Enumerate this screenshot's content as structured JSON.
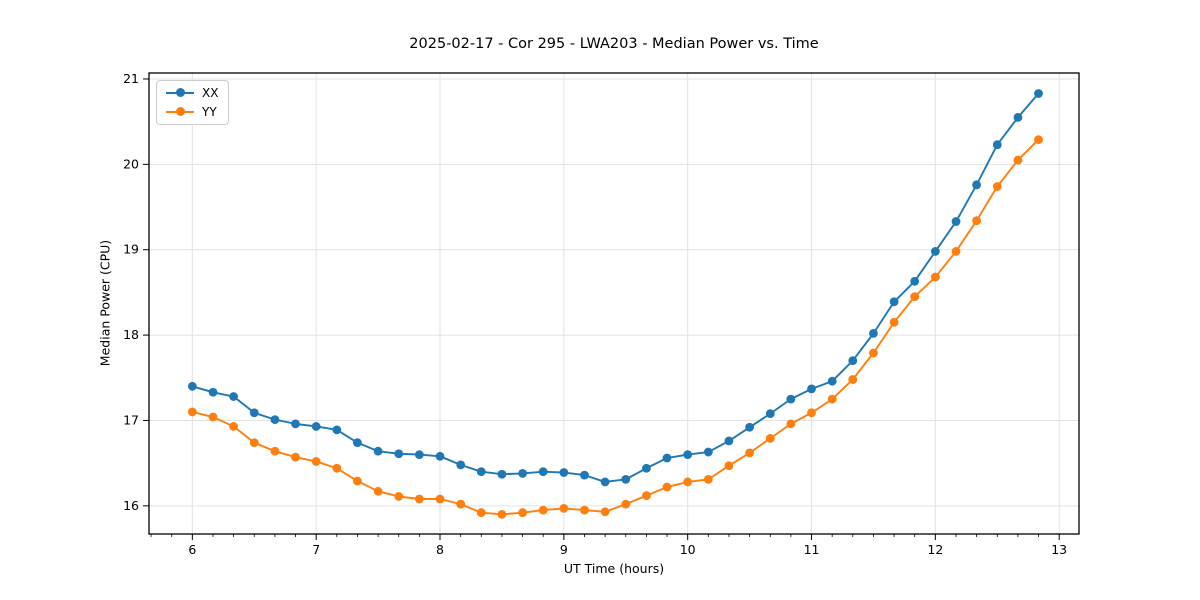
{
  "figure": {
    "title": "2025-02-17 - Cor 295 - LWA203 - Median Power vs. Time"
  },
  "chart_data": {
    "type": "line",
    "title": "2025-02-17 - Cor 295 - LWA203 - Median Power vs. Time",
    "xlabel": "UT Time (hours)",
    "ylabel": "Median Power (CPU)",
    "xlim": [
      5.65,
      13.16
    ],
    "ylim": [
      15.67,
      21.07
    ],
    "xticks": [
      6,
      7,
      8,
      9,
      10,
      11,
      12,
      13
    ],
    "yticks": [
      16,
      17,
      18,
      19,
      20,
      21
    ],
    "x_minor_divisions": 6,
    "grid": true,
    "grid_color": "#e2e2e2",
    "legend_position": "upper-left",
    "x": [
      6.0,
      6.167,
      6.333,
      6.5,
      6.667,
      6.833,
      7.0,
      7.167,
      7.333,
      7.5,
      7.667,
      7.833,
      8.0,
      8.167,
      8.333,
      8.5,
      8.667,
      8.833,
      9.0,
      9.167,
      9.333,
      9.5,
      9.667,
      9.833,
      10.0,
      10.167,
      10.333,
      10.5,
      10.667,
      10.833,
      11.0,
      11.167,
      11.333,
      11.5,
      11.667,
      11.833,
      12.0,
      12.167,
      12.333,
      12.5,
      12.667,
      12.833
    ],
    "series": [
      {
        "name": "XX",
        "color": "#1f77b4",
        "marker": "circle",
        "values": [
          17.4,
          17.33,
          17.28,
          17.09,
          17.01,
          16.96,
          16.93,
          16.89,
          16.74,
          16.64,
          16.61,
          16.6,
          16.58,
          16.48,
          16.4,
          16.37,
          16.38,
          16.4,
          16.39,
          16.36,
          16.28,
          16.31,
          16.44,
          16.56,
          16.6,
          16.63,
          16.76,
          16.92,
          17.08,
          17.25,
          17.37,
          17.46,
          17.7,
          18.02,
          18.39,
          18.63,
          18.98,
          19.33,
          19.76,
          20.23,
          20.55,
          20.83
        ]
      },
      {
        "name": "YY",
        "color": "#ff7f0e",
        "marker": "circle",
        "values": [
          17.1,
          17.04,
          16.93,
          16.74,
          16.64,
          16.57,
          16.52,
          16.44,
          16.29,
          16.17,
          16.11,
          16.08,
          16.08,
          16.02,
          15.92,
          15.9,
          15.92,
          15.95,
          15.97,
          15.95,
          15.93,
          16.02,
          16.12,
          16.22,
          16.28,
          16.31,
          16.47,
          16.62,
          16.79,
          16.96,
          17.09,
          17.25,
          17.48,
          17.79,
          18.15,
          18.45,
          18.68,
          18.98,
          19.34,
          19.74,
          20.05,
          20.29
        ]
      }
    ]
  }
}
